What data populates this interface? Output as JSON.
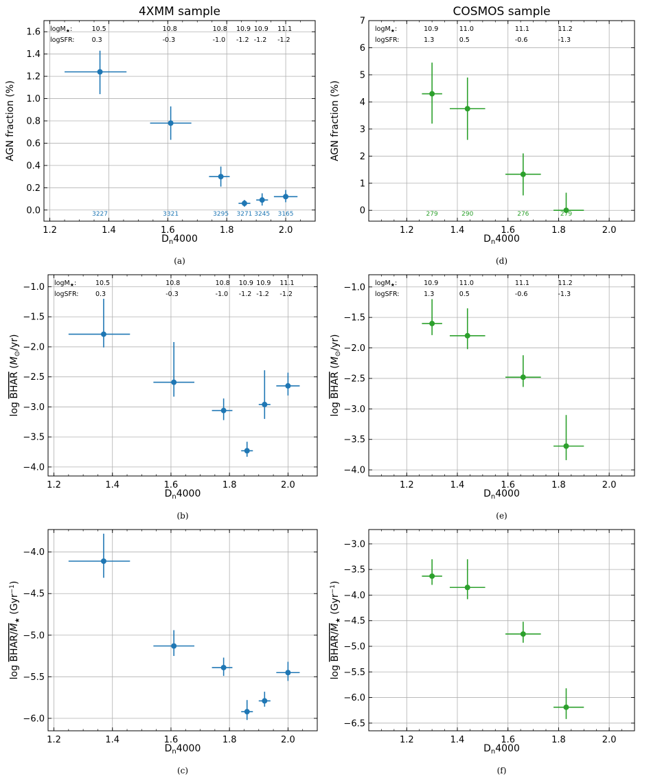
{
  "chart_data": [
    {
      "id": "a",
      "type": "scatter",
      "title": "4XMM sample",
      "xlabel_main": "D",
      "xlabel_sub": "n",
      "xlabel_rest": "4000",
      "ylabel": "AGN fraction (%)",
      "caption": "(a)",
      "color": "#1f77b4",
      "xlim": [
        1.18,
        2.1
      ],
      "ylim": [
        -0.1,
        1.7
      ],
      "xticks": [
        1.2,
        1.4,
        1.6,
        1.8,
        2.0
      ],
      "xtick_labels": [
        "1.2",
        "1.4",
        "1.6",
        "1.8",
        "2.0"
      ],
      "yticks": [
        0.0,
        0.2,
        0.4,
        0.6,
        0.8,
        1.0,
        1.2,
        1.4,
        1.6
      ],
      "ytick_labels": [
        "0.0",
        "0.2",
        "0.4",
        "0.6",
        "0.8",
        "1.0",
        "1.2",
        "1.4",
        "1.6"
      ],
      "x": [
        1.37,
        1.61,
        1.78,
        1.86,
        1.92,
        2.0
      ],
      "xerr_low": [
        1.25,
        1.54,
        1.74,
        1.84,
        1.9,
        1.96
      ],
      "xerr_high": [
        1.46,
        1.68,
        1.81,
        1.88,
        1.94,
        2.04
      ],
      "y": [
        1.24,
        0.78,
        0.3,
        0.06,
        0.09,
        0.12
      ],
      "yerr_low": [
        1.04,
        0.63,
        0.21,
        0.03,
        0.04,
        0.07
      ],
      "yerr_high": [
        1.43,
        0.93,
        0.39,
        0.09,
        0.15,
        0.18
      ],
      "anno_row_labels": [
        "logM",
        "logSFR:"
      ],
      "logM_values": [
        "10.5",
        "10.8",
        "10.8",
        "10.9",
        "10.9",
        "11.1"
      ],
      "logSFR_values": [
        "0.3",
        "-0.3",
        "-1.0",
        "-1.2",
        "-1.2",
        "-1.2"
      ],
      "counts": [
        "3227",
        "3321",
        "3295",
        "3271",
        "3245",
        "3165"
      ]
    },
    {
      "id": "d",
      "type": "scatter",
      "title": "COSMOS sample",
      "xlabel_main": "D",
      "xlabel_sub": "n",
      "xlabel_rest": "4000",
      "ylabel": "AGN fraction (%)",
      "caption": "(d)",
      "color": "#2ca02c",
      "xlim": [
        1.05,
        2.1
      ],
      "ylim": [
        -0.4,
        7.0
      ],
      "xticks": [
        1.2,
        1.4,
        1.6,
        1.8,
        2.0
      ],
      "xtick_labels": [
        "1.2",
        "1.4",
        "1.6",
        "1.8",
        "2.0"
      ],
      "yticks": [
        0,
        1,
        2,
        3,
        4,
        5,
        6,
        7
      ],
      "ytick_labels": [
        "0",
        "1",
        "2",
        "3",
        "4",
        "5",
        "6",
        "7"
      ],
      "x": [
        1.3,
        1.44,
        1.66,
        1.83
      ],
      "xerr_low": [
        1.26,
        1.37,
        1.59,
        1.78
      ],
      "xerr_high": [
        1.34,
        1.51,
        1.73,
        1.9
      ],
      "y": [
        4.3,
        3.75,
        1.33,
        0.0
      ],
      "yerr_low": [
        3.2,
        2.6,
        0.55,
        -0.1
      ],
      "yerr_high": [
        5.45,
        4.9,
        2.1,
        0.65
      ],
      "anno_row_labels": [
        "logM",
        "logSFR:"
      ],
      "logM_values": [
        "10.9",
        "11.0",
        "11.1",
        "11.2"
      ],
      "logSFR_values": [
        "1.3",
        "0.5",
        "-0.6",
        "-1.3"
      ],
      "counts": [
        "279",
        "290",
        "276",
        "279"
      ]
    },
    {
      "id": "b",
      "type": "scatter",
      "title": "",
      "xlabel_main": "D",
      "xlabel_sub": "n",
      "xlabel_rest": "4000",
      "ylabel": "log BHAR (M⊙/yr)",
      "ylabel_parts": [
        "log ",
        "BHAR",
        " (",
        "M",
        "⊙",
        "/yr)"
      ],
      "caption": "(b)",
      "color": "#1f77b4",
      "xlim": [
        1.18,
        2.1
      ],
      "ylim": [
        -4.15,
        -0.8
      ],
      "xticks": [
        1.2,
        1.4,
        1.6,
        1.8,
        2.0
      ],
      "xtick_labels": [
        "1.2",
        "1.4",
        "1.6",
        "1.8",
        "2.0"
      ],
      "yticks": [
        -4.0,
        -3.5,
        -3.0,
        -2.5,
        -2.0,
        -1.5,
        -1.0
      ],
      "ytick_labels": [
        "−4.0",
        "−3.5",
        "−3.0",
        "−2.5",
        "−2.0",
        "−1.5",
        "−1.0"
      ],
      "x": [
        1.37,
        1.61,
        1.78,
        1.86,
        1.92,
        2.0
      ],
      "xerr_low": [
        1.25,
        1.54,
        1.74,
        1.84,
        1.9,
        1.96
      ],
      "xerr_high": [
        1.46,
        1.68,
        1.81,
        1.88,
        1.94,
        2.04
      ],
      "y": [
        -1.79,
        -2.59,
        -3.06,
        -3.73,
        -2.96,
        -2.65
      ],
      "yerr_low": [
        -2.01,
        -2.83,
        -3.22,
        -3.83,
        -3.2,
        -2.81
      ],
      "yerr_high": [
        -1.2,
        -1.92,
        -2.86,
        -3.58,
        -2.39,
        -2.43
      ],
      "anno_row_labels": [
        "logM",
        "logSFR:"
      ],
      "logM_values": [
        "10.5",
        "10.8",
        "10.8",
        "10.9",
        "10.9",
        "11.1"
      ],
      "logSFR_values": [
        "0.3",
        "-0.3",
        "-1.0",
        "-1.2",
        "-1.2",
        "-1.2"
      ],
      "counts": []
    },
    {
      "id": "e",
      "type": "scatter",
      "title": "",
      "xlabel_main": "D",
      "xlabel_sub": "n",
      "xlabel_rest": "4000",
      "ylabel": "log BHAR (M⊙/yr)",
      "ylabel_parts": [
        "log ",
        "BHAR",
        " (",
        "M",
        "⊙",
        "/yr)"
      ],
      "caption": "(e)",
      "color": "#2ca02c",
      "xlim": [
        1.05,
        2.1
      ],
      "ylim": [
        -4.1,
        -0.8
      ],
      "xticks": [
        1.2,
        1.4,
        1.6,
        1.8,
        2.0
      ],
      "xtick_labels": [
        "1.2",
        "1.4",
        "1.6",
        "1.8",
        "2.0"
      ],
      "yticks": [
        -4.0,
        -3.5,
        -3.0,
        -2.5,
        -2.0,
        -1.5,
        -1.0
      ],
      "ytick_labels": [
        "−4.0",
        "−3.5",
        "−3.0",
        "−2.5",
        "−2.0",
        "−1.5",
        "−1.0"
      ],
      "x": [
        1.3,
        1.44,
        1.66,
        1.83
      ],
      "xerr_low": [
        1.26,
        1.37,
        1.59,
        1.78
      ],
      "xerr_high": [
        1.34,
        1.51,
        1.73,
        1.9
      ],
      "y": [
        -1.6,
        -1.8,
        -2.48,
        -3.61
      ],
      "yerr_low": [
        -1.79,
        -2.02,
        -2.64,
        -3.84
      ],
      "yerr_high": [
        -1.2,
        -1.35,
        -2.12,
        -3.1
      ],
      "anno_row_labels": [
        "logM",
        "logSFR:"
      ],
      "logM_values": [
        "10.9",
        "11.0",
        "11.1",
        "11.2"
      ],
      "logSFR_values": [
        "1.3",
        "0.5",
        "-0.6",
        "-1.3"
      ],
      "counts": []
    },
    {
      "id": "c",
      "type": "scatter",
      "title": "",
      "xlabel_main": "D",
      "xlabel_sub": "n",
      "xlabel_rest": "4000",
      "ylabel": "log BHAR/M★ (Gyr⁻¹)",
      "ylabel_parts": [
        "log ",
        "BHAR",
        "/",
        "M",
        "★",
        " (Gyr",
        "−1",
        ")"
      ],
      "caption": "(c)",
      "color": "#1f77b4",
      "xlim": [
        1.18,
        2.1
      ],
      "ylim": [
        -6.15,
        -3.73
      ],
      "xticks": [
        1.2,
        1.4,
        1.6,
        1.8,
        2.0
      ],
      "xtick_labels": [
        "1.2",
        "1.4",
        "1.6",
        "1.8",
        "2.0"
      ],
      "yticks": [
        -6.0,
        -5.5,
        -5.0,
        -4.5,
        -4.0
      ],
      "ytick_labels": [
        "−6.0",
        "−5.5",
        "−5.0",
        "−4.5",
        "−4.0"
      ],
      "x": [
        1.37,
        1.61,
        1.78,
        1.86,
        1.92,
        2.0
      ],
      "xerr_low": [
        1.25,
        1.54,
        1.74,
        1.84,
        1.9,
        1.96
      ],
      "xerr_high": [
        1.46,
        1.68,
        1.81,
        1.88,
        1.94,
        2.04
      ],
      "y": [
        -4.11,
        -5.13,
        -5.39,
        -5.92,
        -5.79,
        -5.45
      ],
      "yerr_low": [
        -4.31,
        -5.25,
        -5.49,
        -6.02,
        -5.86,
        -5.55
      ],
      "yerr_high": [
        -3.78,
        -4.94,
        -5.27,
        -5.78,
        -5.68,
        -5.32
      ],
      "anno_row_labels": [],
      "logM_values": [],
      "logSFR_values": [],
      "counts": []
    },
    {
      "id": "f",
      "type": "scatter",
      "title": "",
      "xlabel_main": "D",
      "xlabel_sub": "n",
      "xlabel_rest": "4000",
      "ylabel": "log BHAR/M★ (Gyr⁻¹)",
      "ylabel_parts": [
        "log ",
        "BHAR",
        "/",
        "M",
        "★",
        " (Gyr",
        "−1",
        ")"
      ],
      "caption": "(f)",
      "color": "#2ca02c",
      "xlim": [
        1.05,
        2.1
      ],
      "ylim": [
        -6.65,
        -2.72
      ],
      "xticks": [
        1.2,
        1.4,
        1.6,
        1.8,
        2.0
      ],
      "xtick_labels": [
        "1.2",
        "1.4",
        "1.6",
        "1.8",
        "2.0"
      ],
      "yticks": [
        -6.5,
        -6.0,
        -5.5,
        -5.0,
        -4.5,
        -4.0,
        -3.5,
        -3.0
      ],
      "ytick_labels": [
        "−6.5",
        "−6.0",
        "−5.5",
        "−5.0",
        "−4.5",
        "−4.0",
        "−3.5",
        "−3.0"
      ],
      "x": [
        1.3,
        1.44,
        1.66,
        1.83
      ],
      "xerr_low": [
        1.26,
        1.37,
        1.59,
        1.78
      ],
      "xerr_high": [
        1.34,
        1.51,
        1.73,
        1.9
      ],
      "y": [
        -3.63,
        -3.85,
        -4.76,
        -6.19
      ],
      "yerr_low": [
        -3.8,
        -4.08,
        -4.93,
        -6.42
      ],
      "yerr_high": [
        -3.3,
        -3.3,
        -4.52,
        -5.82
      ],
      "anno_row_labels": [],
      "logM_values": [],
      "logSFR_values": [],
      "counts": []
    }
  ]
}
